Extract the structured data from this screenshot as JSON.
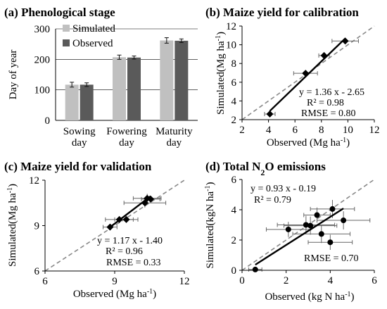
{
  "chart_data": [
    {
      "id": "a",
      "type": "bar",
      "title": "(a) Phenological stage",
      "ylabel": "Day of year",
      "ylim": [
        0,
        300
      ],
      "yticks": [
        0,
        100,
        200,
        300
      ],
      "categories": [
        [
          "Sowing",
          "day"
        ],
        [
          "Fowering",
          "day"
        ],
        [
          "Maturity",
          "day"
        ]
      ],
      "grid": true,
      "legend": "top-left",
      "series": [
        {
          "name": "Simulated",
          "color": "#c0c0c0",
          "values": [
            117,
            207,
            262
          ],
          "errors": [
            8,
            7,
            9
          ]
        },
        {
          "name": "Observed",
          "color": "#5a5a5a",
          "values": [
            117,
            206,
            261
          ],
          "errors": [
            6,
            5,
            6
          ]
        }
      ]
    },
    {
      "id": "b",
      "type": "scatter",
      "title": "(b) Maize yield for calibration",
      "xlabel": "Observed (Mg ha⁻¹)",
      "ylabel": "Simulated(Mg ha⁻¹)",
      "xlim": [
        2,
        12
      ],
      "ylim": [
        2,
        12
      ],
      "xticks": [
        2,
        4,
        6,
        8,
        10,
        12
      ],
      "yticks": [
        2,
        4,
        6,
        8,
        10,
        12
      ],
      "points": [
        {
          "x": 4.1,
          "y": 2.6,
          "xerr": 0.4,
          "yerr": 0.3
        },
        {
          "x": 6.8,
          "y": 6.95,
          "xerr": 0.9,
          "yerr": 0.3
        },
        {
          "x": 8.2,
          "y": 8.85,
          "xerr": 0.4,
          "yerr": 0.3
        },
        {
          "x": 9.8,
          "y": 10.4,
          "xerr": 1.0,
          "yerr": 0.3
        }
      ],
      "fit": {
        "slope": 1.36,
        "intercept": -2.65,
        "x_range": [
          4.1,
          9.8
        ]
      },
      "annotations": [
        "y = 1.36 x - 2.65",
        "R² = 0.98",
        "RMSE = 0.80"
      ]
    },
    {
      "id": "c",
      "type": "scatter",
      "title": "(c) Maize yield for validation",
      "xlabel": "Observed (Mg ha⁻¹)",
      "ylabel": "Simulated(Mg ha⁻¹)",
      "xlim": [
        6,
        12
      ],
      "ylim": [
        6,
        12
      ],
      "xticks": [
        6,
        9,
        12
      ],
      "yticks": [
        6,
        9,
        12
      ],
      "points": [
        {
          "x": 8.8,
          "y": 8.9,
          "xerr": 0.3,
          "yerr": 0.2
        },
        {
          "x": 9.2,
          "y": 9.4,
          "xerr": 0.6,
          "yerr": 0.2
        },
        {
          "x": 9.5,
          "y": 9.4,
          "xerr": 0.5,
          "yerr": 0.2
        },
        {
          "x": 10.3,
          "y": 10.5,
          "xerr": 0.9,
          "yerr": 0.3
        },
        {
          "x": 10.4,
          "y": 10.8,
          "xerr": 0.6,
          "yerr": 0.3
        },
        {
          "x": 10.55,
          "y": 10.75,
          "xerr": 0.4,
          "yerr": 0.2
        }
      ],
      "fit": {
        "slope": 1.17,
        "intercept": -1.4,
        "x_range": [
          8.8,
          10.55
        ]
      },
      "annotations": [
        "y = 1.17 x - 1.40",
        "R² = 0.96",
        "RMSE = 0.33"
      ]
    },
    {
      "id": "d",
      "type": "scatter",
      "title": "(d) Total N₂O emissions",
      "xlabel": "Observed (kg N ha⁻¹)",
      "ylabel": "Simulated(kgN ha⁻¹)",
      "xlim": [
        0,
        6
      ],
      "ylim": [
        0,
        6
      ],
      "xticks": [
        0,
        2,
        4,
        6
      ],
      "yticks": [
        0,
        2,
        4,
        6
      ],
      "points": [
        {
          "x": 0.6,
          "y": 0.05,
          "xerr": 0.3,
          "yerr": 0.05
        },
        {
          "x": 2.1,
          "y": 2.7,
          "xerr": 1.0,
          "yerr": 0.5
        },
        {
          "x": 2.9,
          "y": 3.0,
          "xerr": 1.3,
          "yerr": 0.6
        },
        {
          "x": 3.1,
          "y": 2.95,
          "xerr": 1.2,
          "yerr": 0.6
        },
        {
          "x": 3.4,
          "y": 3.65,
          "xerr": 0.6,
          "yerr": 0.5
        },
        {
          "x": 3.6,
          "y": 2.4,
          "xerr": 1.3,
          "yerr": 0.6
        },
        {
          "x": 4.0,
          "y": 1.85,
          "xerr": 1.0,
          "yerr": 0.5
        },
        {
          "x": 4.1,
          "y": 4.05,
          "xerr": 1.0,
          "yerr": 0.6
        },
        {
          "x": 4.6,
          "y": 3.3,
          "xerr": 1.2,
          "yerr": 0.6
        }
      ],
      "fit": {
        "slope": 0.93,
        "intercept": -0.19,
        "x_range": [
          0.6,
          4.6
        ]
      },
      "annotations": [
        "y = 0.93 x - 0.19",
        "R² = 0.79",
        "RMSE = 0.70"
      ]
    }
  ]
}
